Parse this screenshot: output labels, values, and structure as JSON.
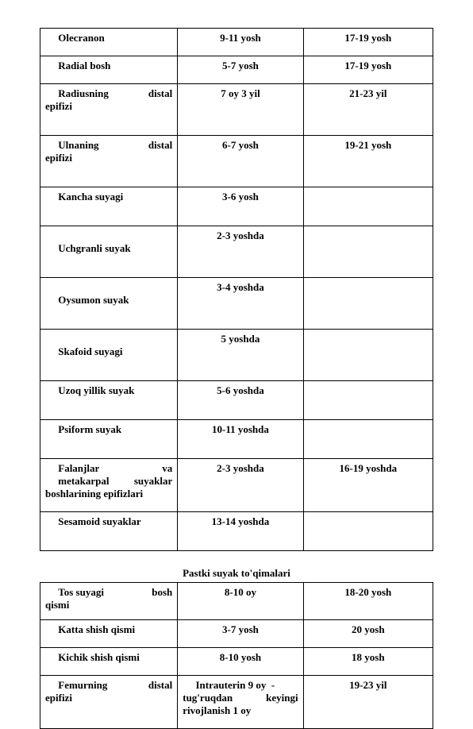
{
  "table1": {
    "rows": [
      {
        "c1": "Olecranon",
        "c2": "9-11 yosh",
        "c3": "17-19 yosh",
        "tall": false,
        "indent": true
      },
      {
        "c1": "Radial bosh",
        "c2": "5-7 yosh",
        "c3": "17-19 yosh",
        "tall": false,
        "indent": true
      },
      {
        "c1": "Radiusning distal epifizi",
        "c2": "7 oy 3 yil",
        "c3": "21-23 yil",
        "tall": true,
        "indent": false,
        "justify": true
      },
      {
        "c1": "Ulnaning distal epifizi",
        "c2": "6-7 yosh",
        "c3": "19-21 yosh",
        "tall": true,
        "indent": false,
        "justify": true
      },
      {
        "c1": "Kancha suyagi",
        "c2": "3-6 yosh",
        "c3": "",
        "tall": true,
        "indent": true
      },
      {
        "c1": "Uchgranli  suyak",
        "c2": "2-3 yoshda",
        "c3": "",
        "tall": true,
        "indent": true,
        "mid": true
      },
      {
        "c1": "Oysumon suyak",
        "c2": "3-4 yoshda",
        "c3": "",
        "tall": true,
        "indent": true,
        "mid": true
      },
      {
        "c1": "Skafoid suyagi",
        "c2": "5 yoshda",
        "c3": "",
        "tall": true,
        "indent": true,
        "mid": true
      },
      {
        "c1": "Uzoq yillik suyak",
        "c2": "5-6 yoshda",
        "c3": "",
        "tall": true,
        "indent": true
      },
      {
        "c1": "Psiform suyak",
        "c2": "10-11 yoshda",
        "c3": "",
        "tall": true,
        "indent": true
      },
      {
        "c1": "Falanjlar va metakarpal suyaklar boshlarining epifizlari",
        "c2": "2-3 yoshda",
        "c3": "16-19 yoshda",
        "tall": false,
        "indent": false,
        "justifyMulti": true
      },
      {
        "c1": "Sesamoid suyaklar",
        "c2": "13-14 yoshda",
        "c3": "",
        "tall": true,
        "indent": true
      }
    ]
  },
  "heading2": "Pastki  suyak to'qimalari",
  "table2": {
    "rows": [
      {
        "c1": "Tos suyagi bosh qismi",
        "c2": "8-10 oy",
        "c3": "18-20 yosh",
        "indent": false,
        "justify": true
      },
      {
        "c1": "Katta shish qismi",
        "c2": "3-7 yosh",
        "c3": "20 yosh",
        "indent": true
      },
      {
        "c1": "Kichik shish qismi",
        "c2": "8-10 yosh",
        "c3": "18 yosh",
        "indent": true
      },
      {
        "c1": "Femurning distal epifizi",
        "c2": "Intrauterin 9 oy -tug'ruqdan keyingi rivojlanish 1 oy",
        "c3": "19-23 yil",
        "indent": false,
        "justify": true,
        "justify2": true
      }
    ]
  },
  "style": {
    "border_color": "#000000",
    "background": "#ffffff",
    "font_family": "Times New Roman",
    "font_size_pt": 10,
    "font_weight": "bold"
  }
}
